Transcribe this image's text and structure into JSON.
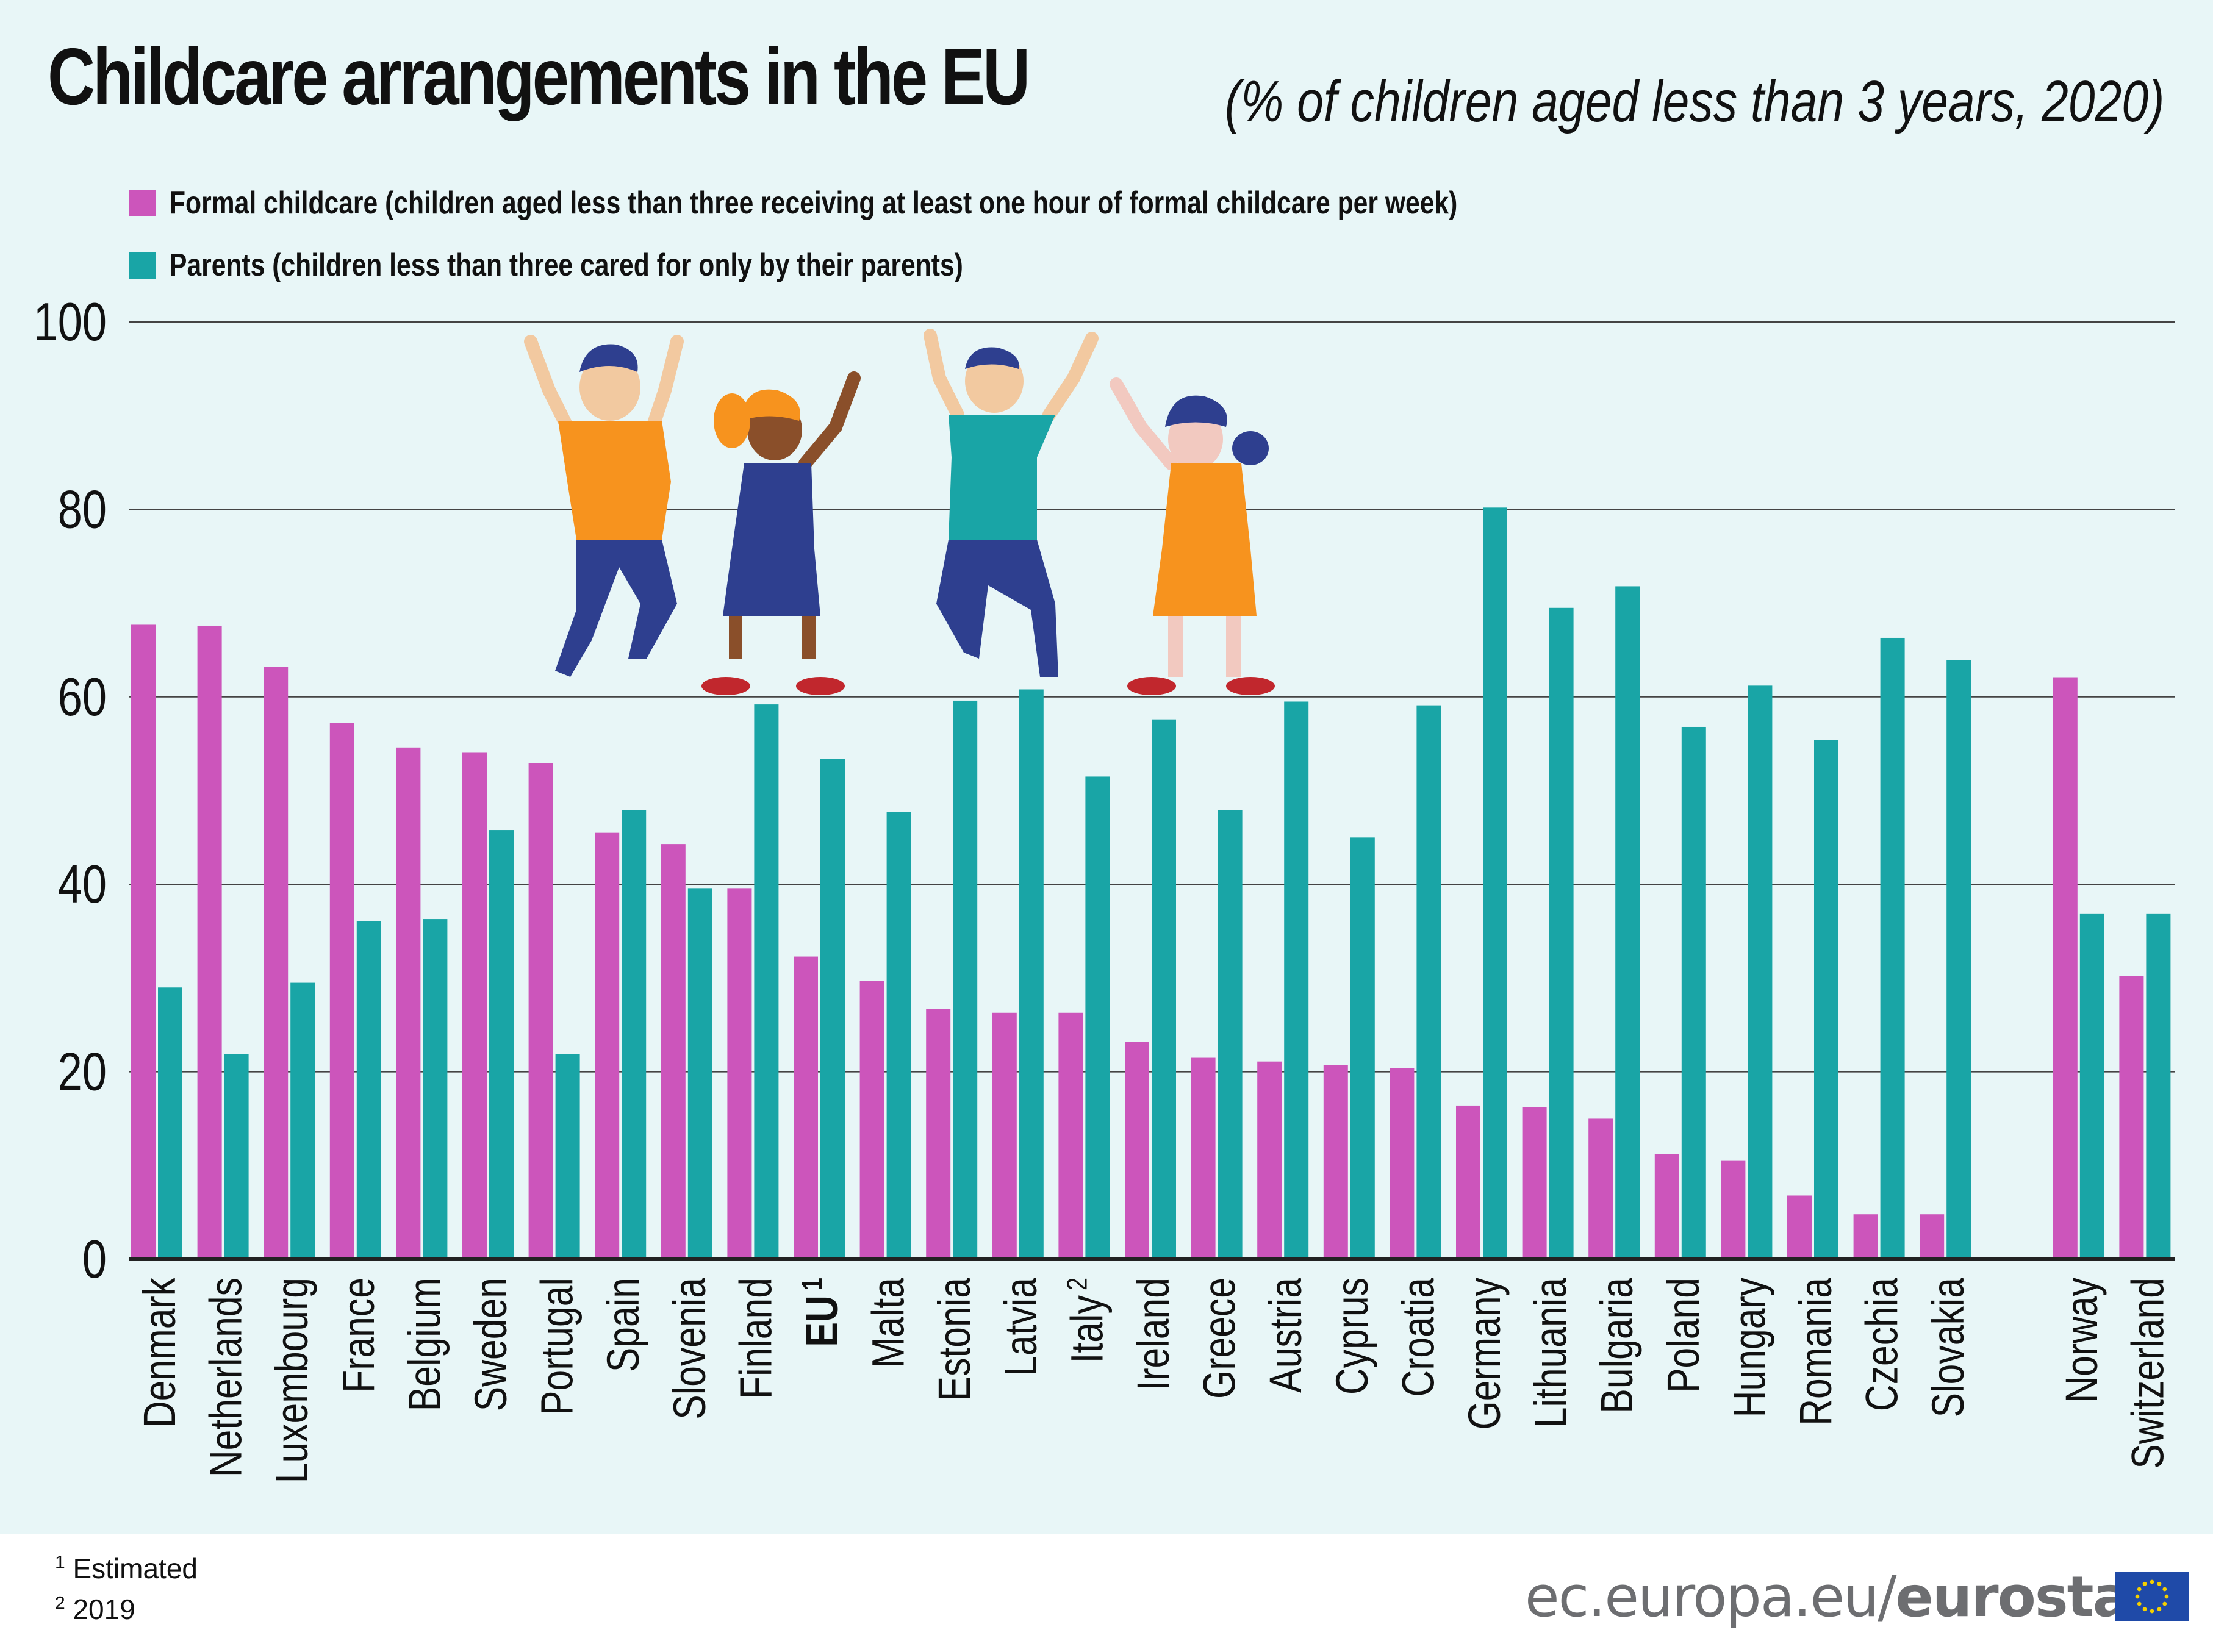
{
  "title": "Childcare arrangements in the EU",
  "subtitle": "(% of children aged less than 3 years, 2020)",
  "legend": [
    {
      "label": "Formal childcare (children aged less than three receiving at least one hour of formal childcare per week)",
      "color": "#cc55bb"
    },
    {
      "label": "Parents (children less than three cared for only by their parents)",
      "color": "#19a5a6"
    }
  ],
  "chart_data": {
    "type": "bar",
    "title": "Childcare arrangements in the EU",
    "subtitle": "(% of children aged less than 3 years, 2020)",
    "xlabel": "",
    "ylabel": "",
    "ylim": [
      0,
      100
    ],
    "yticks": [
      0,
      20,
      40,
      60,
      80,
      100
    ],
    "grid": true,
    "legend_position": "top-left",
    "categories": [
      {
        "label": "Denmark",
        "sup": "",
        "bold": false
      },
      {
        "label": "Netherlands",
        "sup": "",
        "bold": false
      },
      {
        "label": "Luxembourg",
        "sup": "",
        "bold": false
      },
      {
        "label": "France",
        "sup": "",
        "bold": false
      },
      {
        "label": "Belgium",
        "sup": "",
        "bold": false
      },
      {
        "label": "Sweden",
        "sup": "",
        "bold": false
      },
      {
        "label": "Portugal",
        "sup": "",
        "bold": false
      },
      {
        "label": "Spain",
        "sup": "",
        "bold": false
      },
      {
        "label": "Slovenia",
        "sup": "",
        "bold": false
      },
      {
        "label": "Finland",
        "sup": "",
        "bold": false
      },
      {
        "label": "EU",
        "sup": "1",
        "bold": true
      },
      {
        "label": "Malta",
        "sup": "",
        "bold": false
      },
      {
        "label": "Estonia",
        "sup": "",
        "bold": false
      },
      {
        "label": "Latvia",
        "sup": "",
        "bold": false
      },
      {
        "label": "Italy",
        "sup": "2",
        "bold": false
      },
      {
        "label": "Ireland",
        "sup": "",
        "bold": false
      },
      {
        "label": "Greece",
        "sup": "",
        "bold": false
      },
      {
        "label": "Austria",
        "sup": "",
        "bold": false
      },
      {
        "label": "Cyprus",
        "sup": "",
        "bold": false
      },
      {
        "label": "Croatia",
        "sup": "",
        "bold": false
      },
      {
        "label": "Germany",
        "sup": "",
        "bold": false
      },
      {
        "label": "Lithuania",
        "sup": "",
        "bold": false
      },
      {
        "label": "Bulgaria",
        "sup": "",
        "bold": false
      },
      {
        "label": "Poland",
        "sup": "",
        "bold": false
      },
      {
        "label": "Hungary",
        "sup": "",
        "bold": false
      },
      {
        "label": "Romania",
        "sup": "",
        "bold": false
      },
      {
        "label": "Czechia",
        "sup": "",
        "bold": false
      },
      {
        "label": "Slovakia",
        "sup": "",
        "bold": false
      },
      {
        "label": "Norway",
        "sup": "",
        "bold": false
      },
      {
        "label": "Switzerland",
        "sup": "",
        "bold": false
      }
    ],
    "series": [
      {
        "name": "Formal childcare (children aged less than three receiving at least one hour of formal childcare per week)",
        "color": "#cc55bb",
        "values": [
          67.7,
          67.6,
          63.2,
          57.2,
          54.6,
          54.1,
          52.9,
          45.5,
          44.3,
          39.6,
          32.3,
          29.7,
          26.7,
          26.3,
          26.3,
          23.2,
          21.5,
          21.1,
          20.7,
          20.4,
          16.4,
          16.2,
          15.0,
          11.2,
          10.5,
          6.8,
          4.8,
          4.8,
          62.1,
          30.2
        ]
      },
      {
        "name": "Parents (children less than three cared for only by their parents)",
        "color": "#19a5a6",
        "values": [
          29.0,
          21.9,
          29.5,
          36.1,
          36.3,
          45.8,
          21.9,
          47.9,
          39.6,
          59.2,
          53.4,
          47.7,
          59.6,
          60.8,
          51.5,
          57.6,
          47.9,
          59.5,
          45.0,
          59.1,
          80.2,
          69.5,
          71.8,
          56.8,
          61.2,
          55.4,
          66.3,
          63.9,
          36.9,
          36.9
        ]
      }
    ]
  },
  "footnotes": [
    {
      "sup": "1",
      "text": "Estimated"
    },
    {
      "sup": "2",
      "text": "2019"
    }
  ],
  "branding": {
    "domain": "ec.europa.eu/",
    "name": "eurostat",
    "flag_color": "#1f4aa8",
    "star_color": "#f5d000"
  }
}
